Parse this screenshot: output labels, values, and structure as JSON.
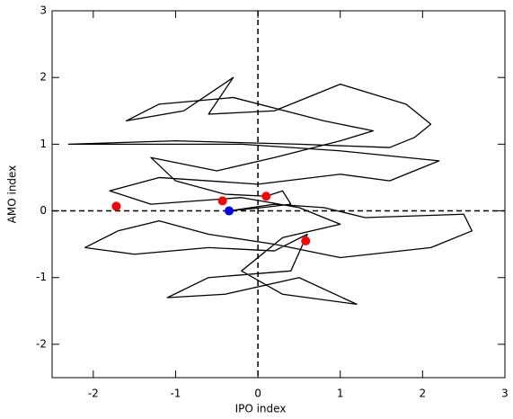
{
  "chart_data": {
    "type": "scatter",
    "x_label": "IPO index",
    "y_label": "AMO index",
    "xlim": [
      -2.5,
      3
    ],
    "ylim": [
      -2.5,
      3
    ],
    "xticks": [
      -2,
      -1,
      0,
      1,
      2,
      3
    ],
    "yticks": [
      -2,
      -1,
      0,
      1,
      2,
      3
    ],
    "zero_lines": true,
    "series": [
      {
        "mode": "line",
        "color": "#000000",
        "x": [
          -0.35,
          0.2,
          0.8,
          1.3,
          2.5,
          2.6,
          2.1,
          1.0,
          0.2,
          -0.6,
          -1.2,
          -1.7,
          -2.1,
          -1.5,
          -0.6,
          0.2,
          0.6,
          0.4,
          -0.6,
          -1.1,
          -0.4,
          0.5,
          1.2,
          0.3,
          -0.2,
          0.3,
          1.0,
          0.5,
          -0.2,
          -1.3,
          -1.8,
          -1.2,
          0.0,
          1.0,
          1.6,
          1.9,
          2.2,
          1.0,
          -0.2,
          -1.5,
          -2.3,
          -1.0,
          0.5,
          1.6,
          1.9,
          2.1,
          1.8,
          1.0,
          0.2,
          -0.6,
          -0.3,
          -0.9,
          -1.6,
          -1.2,
          -0.3,
          0.8,
          1.4,
          1.0,
          0.2,
          -0.5,
          -1.3,
          -1.0,
          -0.4,
          0.1,
          0.3,
          0.4,
          0.05,
          -0.35
        ],
        "y": [
          0.0,
          0.1,
          0.05,
          -0.1,
          -0.05,
          -0.3,
          -0.55,
          -0.7,
          -0.5,
          -0.35,
          -0.15,
          -0.3,
          -0.55,
          -0.65,
          -0.55,
          -0.6,
          -0.35,
          -0.9,
          -1.0,
          -1.3,
          -1.25,
          -1.0,
          -1.4,
          -1.25,
          -0.9,
          -0.4,
          -0.2,
          0.05,
          0.2,
          0.1,
          0.3,
          0.5,
          0.4,
          0.55,
          0.45,
          0.6,
          0.75,
          0.9,
          1.0,
          1.0,
          1.0,
          1.05,
          1.0,
          0.95,
          1.1,
          1.3,
          1.6,
          1.9,
          1.5,
          1.45,
          2.0,
          1.5,
          1.35,
          1.6,
          1.7,
          1.35,
          1.2,
          1.05,
          0.8,
          0.6,
          0.8,
          0.45,
          0.25,
          0.22,
          0.3,
          0.1,
          0.05,
          0.0
        ]
      },
      {
        "mode": "markers",
        "color": "#ff0000",
        "x": [
          -1.72,
          -0.43,
          0.1,
          0.58
        ],
        "y": [
          0.07,
          0.15,
          0.22,
          -0.45
        ]
      },
      {
        "mode": "markers",
        "color": "#0000ff",
        "x": [
          -0.35
        ],
        "y": [
          0.0
        ]
      }
    ]
  }
}
